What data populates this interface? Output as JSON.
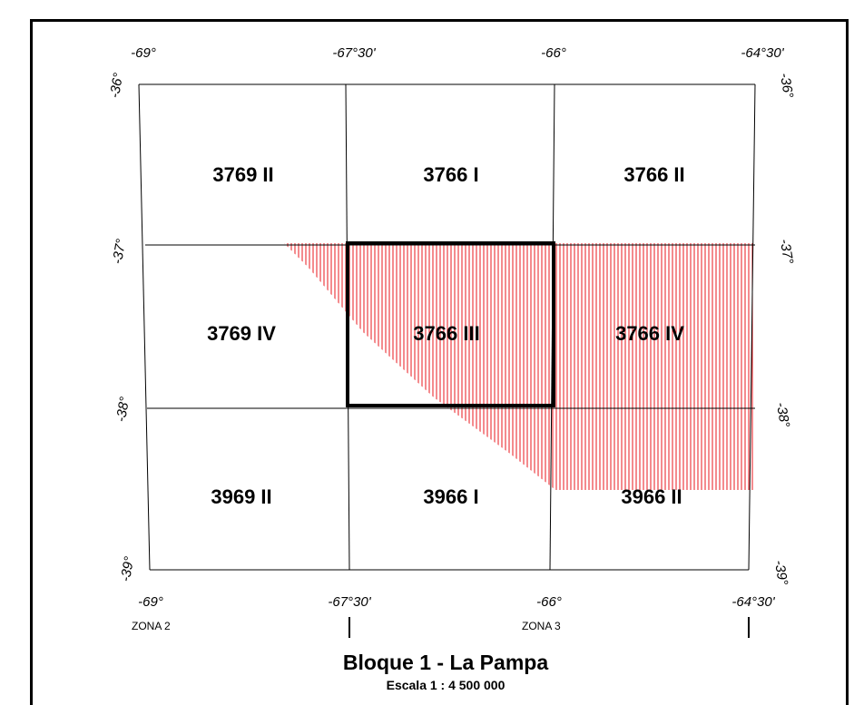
{
  "map": {
    "coords": {
      "top": [
        "-69°",
        "-67°30'",
        "-66°",
        "-64°30'"
      ],
      "bottom": [
        "-69°",
        "-67°30'",
        "-66°",
        "-64°30'"
      ],
      "left": [
        "-36°",
        "-37°",
        "-38°",
        "-39°"
      ],
      "right": [
        "-36°",
        "-37°",
        "-38°",
        "-39°"
      ]
    },
    "sheets": [
      "3769 II",
      "3766 I",
      "3766 II",
      "3769 IV",
      "3766 III",
      "3766 IV",
      "3969 II",
      "3966 I",
      "3966 II"
    ],
    "highlighted_sheet": "3766 III",
    "hatch_color": "#e8171d",
    "zones": [
      "ZONA 2",
      "ZONA 3"
    ],
    "title": "Bloque 1 - La Pampa",
    "scale": "Escala 1 : 4 500 000"
  }
}
